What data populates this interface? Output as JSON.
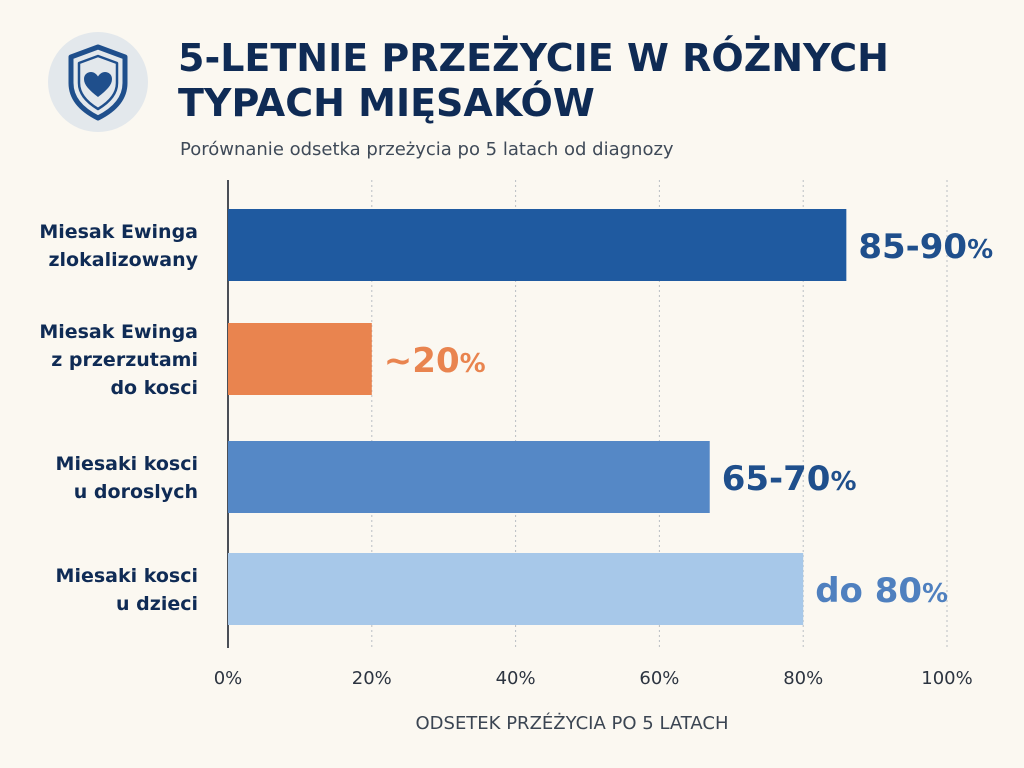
{
  "header": {
    "title": "5-LETNIE PRZEŻYCIE W RÓŻNYCH TYPACH MIĘSAKÓW",
    "subtitle": "Porównanie odsetka przeżycia po 5 latach od diagnozy",
    "icon": "shield-heart-icon"
  },
  "colors": {
    "title": "#0f2b55",
    "dark_blue": "#1f5aa0",
    "orange": "#e9844f",
    "mid_blue": "#5588c6",
    "light_blue": "#a7c8e9",
    "label_dark_blue": "#1f4f8c",
    "label_orange": "#e9844f",
    "label_light_blue": "#4f80bf"
  },
  "chart_data": {
    "type": "bar",
    "orientation": "horizontal",
    "title": "5-LETNIE PRZEŻYCIE W RÓŻNYCH TYPACH MIĘSAKÓW",
    "subtitle": "Porównanie odsetka przeżycia po 5 latach od diagnozy",
    "xlabel": "ODSETEK  PRZÉŻYCIA PO 5 LATACH",
    "ylabel": "",
    "xlim": [
      0,
      100
    ],
    "x_ticks": [
      "0%",
      "20%",
      "40%",
      "60%",
      "80%",
      "100%"
    ],
    "grid": "vertical dotted",
    "legend": "none",
    "categories": [
      [
        "Miesak Ewinga",
        "zlokalizowany"
      ],
      [
        "Miesak Ewinga",
        "z przerzutami",
        "do kosci"
      ],
      [
        "Miesaki kosci",
        "u doroslych"
      ],
      [
        "Miesaki kosci",
        "u dzieci"
      ]
    ],
    "values": [
      86,
      20,
      67,
      80
    ],
    "data_labels": [
      {
        "main": "85-90",
        "unit": "%"
      },
      {
        "main": "~20",
        "unit": "%"
      },
      {
        "main": "65-70",
        "unit": "%"
      },
      {
        "main": "do 80",
        "unit": "%"
      }
    ],
    "bar_colors": [
      "#1f5aa0",
      "#e9844f",
      "#5588c6",
      "#a7c8e9"
    ],
    "label_colors": [
      "#1f4f8c",
      "#e9844f",
      "#1f4f8c",
      "#4f80bf"
    ]
  }
}
